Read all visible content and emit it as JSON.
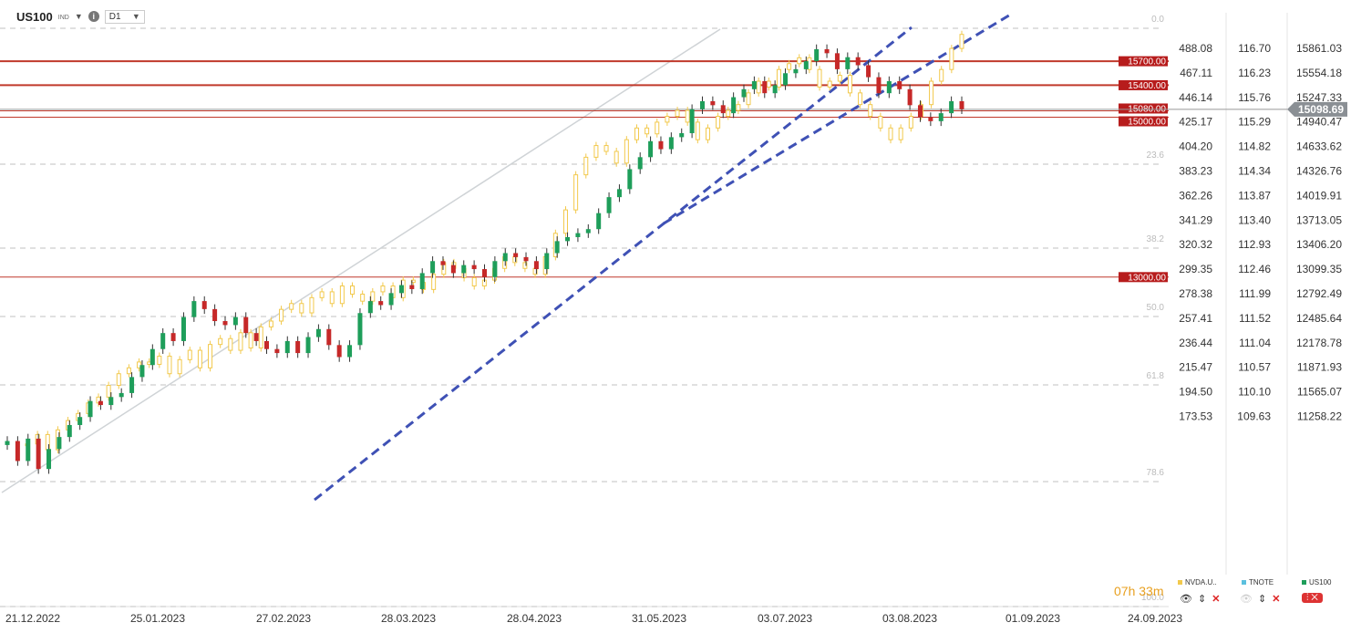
{
  "header": {
    "symbol": "US100",
    "symbol_sub": "IND",
    "info_icon": "i",
    "timeframe": "D1"
  },
  "timer": "07h 33m",
  "legend": [
    {
      "name": "NVDA.U..",
      "color": "#f2c94c"
    },
    {
      "name": "TNOTE",
      "color": "#5bc0de"
    },
    {
      "name": "US100",
      "color": "#1e9e5a"
    }
  ],
  "chart_data": {
    "type": "candlestick",
    "title": "US100",
    "x_ticks": [
      "21.12.2022",
      "25.01.2023",
      "27.02.2023",
      "28.03.2023",
      "28.04.2023",
      "31.05.2023",
      "03.07.2023",
      "03.08.2023",
      "01.09.2023",
      "24.09.2023"
    ],
    "axis_nvda": [
      "488.08",
      "467.11",
      "446.14",
      "425.17",
      "404.20",
      "383.23",
      "362.26",
      "341.29",
      "320.32",
      "299.35",
      "278.38",
      "257.41",
      "236.44",
      "215.47",
      "194.50",
      "173.53"
    ],
    "axis_tnote": [
      "116.70",
      "116.23",
      "115.76",
      "115.29",
      "114.82",
      "114.34",
      "113.87",
      "113.40",
      "112.93",
      "112.46",
      "111.99",
      "111.52",
      "111.04",
      "110.57",
      "110.10",
      "109.63"
    ],
    "axis_us100": [
      "15861.03",
      "15554.18",
      "15247.33",
      "14940.47",
      "14633.62",
      "14326.76",
      "14019.91",
      "13713.05",
      "13406.20",
      "13099.35",
      "12792.49",
      "12485.64",
      "12178.78",
      "11871.93",
      "11565.07",
      "11258.22"
    ],
    "current_price": "15098.69",
    "horizontal_levels": [
      "15700.00",
      "15400.00",
      "15080.00",
      "15000.00",
      "13000.00"
    ],
    "fib_levels": [
      "0.0",
      "23.6",
      "38.2",
      "50.0",
      "61.8",
      "78.6",
      "100.0"
    ],
    "us100_closes": [
      10950,
      10700,
      10980,
      10600,
      10850,
      11000,
      11150,
      11250,
      11450,
      11400,
      11500,
      11550,
      11750,
      11900,
      12100,
      12300,
      12200,
      12500,
      12700,
      12600,
      12450,
      12400,
      12500,
      12300,
      12200,
      12100,
      12050,
      12200,
      12050,
      12250,
      12350,
      12150,
      12000,
      12150,
      12550,
      12700,
      12650,
      12800,
      12900,
      12850,
      13050,
      13200,
      13150,
      13050,
      13150,
      13100,
      13000,
      13200,
      13300,
      13250,
      13200,
      13100,
      13300,
      13450,
      13500,
      13550,
      13600,
      13800,
      14000,
      14100,
      14350,
      14500,
      14700,
      14600,
      14750,
      14800,
      15100,
      15200,
      15150,
      15050,
      15250,
      15350,
      15450,
      15300,
      15400,
      15550,
      15600,
      15700,
      15850,
      15800,
      15600,
      15750,
      15650,
      15500,
      15300,
      15450,
      15350,
      15150,
      15000,
      14950,
      15050,
      15200,
      15100
    ],
    "nvda_closes": [
      150,
      158,
      145,
      162,
      170,
      176,
      185,
      190,
      200,
      210,
      215,
      220,
      218,
      225,
      210,
      222,
      230,
      215,
      235,
      240,
      230,
      245,
      232,
      250,
      255,
      265,
      270,
      262,
      275,
      280,
      270,
      285,
      278,
      272,
      280,
      285,
      275,
      290,
      288,
      282,
      295,
      305,
      300,
      292,
      285,
      290,
      300,
      310,
      305,
      300,
      295,
      310,
      330,
      350,
      380,
      395,
      405,
      400,
      390,
      410,
      420,
      415,
      425,
      430,
      435,
      425,
      410,
      420,
      430,
      435,
      440,
      450,
      460,
      455,
      470,
      475,
      480,
      470,
      455,
      460,
      465,
      450,
      440,
      430,
      420,
      410,
      420,
      430,
      440,
      460,
      470,
      488,
      500
    ]
  }
}
